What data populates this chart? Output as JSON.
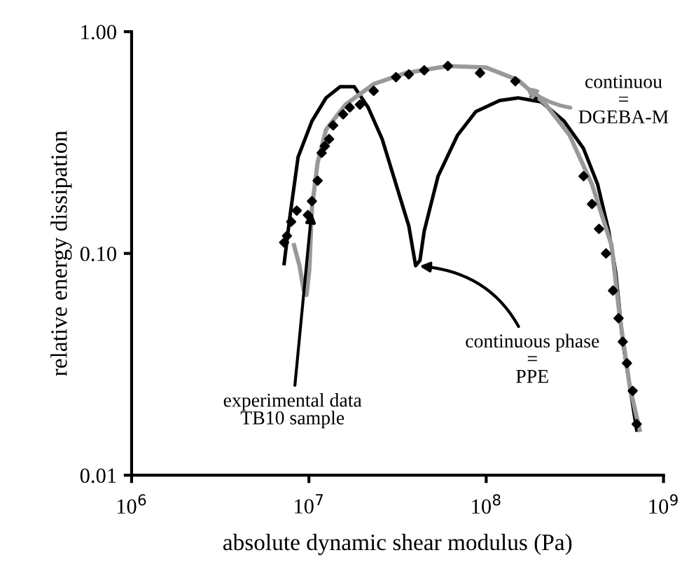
{
  "chart_data": {
    "type": "line",
    "xlabel": "absolute dynamic shear modulus (Pa)",
    "ylabel": "relative energy dissipation",
    "log": "xy",
    "grid": false,
    "legend": false,
    "xlim": [
      1000000,
      1000000000
    ],
    "xticks": [
      {
        "value": 1000000,
        "label": "10$^{6}$"
      },
      {
        "value": 10000000,
        "label": "10$^{7}$"
      },
      {
        "value": 100000000,
        "label": "10$^{8}$"
      },
      {
        "value": 1000000000,
        "label": "10$^{9}$"
      }
    ],
    "ylim": [
      0.01,
      1.0
    ],
    "yticks": [
      {
        "value": 0.01,
        "label": "0.01"
      },
      {
        "value": 0.1,
        "label": "0.10"
      },
      {
        "value": 1.0,
        "label": "1.00"
      }
    ],
    "series": [
      {
        "color": "#000000",
        "line_style": "solid",
        "marker": "none",
        "x": [
          7250000.0,
          7800000.0,
          8690000.0,
          10400000.0,
          12500000.0,
          15000000.0,
          18000000.0,
          21600000.0,
          25900000.0,
          31000000.0,
          36600000.0,
          40000000.0,
          42300000.0,
          44700000.0,
          53500000.0,
          69000000.0,
          87400000.0,
          119000000.0,
          151000000.0,
          205000000.0,
          275000000.0,
          354000000.0,
          425000000.0,
          491000000.0,
          538000000.0,
          589000000.0,
          646000000.0,
          706000000.0
        ],
        "values": [
          0.09,
          0.145,
          0.272,
          0.395,
          0.503,
          0.565,
          0.565,
          0.455,
          0.328,
          0.205,
          0.133,
          0.088,
          0.093,
          0.126,
          0.223,
          0.342,
          0.436,
          0.489,
          0.503,
          0.482,
          0.395,
          0.297,
          0.205,
          0.126,
          0.082,
          0.04,
          0.025,
          0.016
        ]
      },
      {
        "color": "#999999",
        "line_style": "solid",
        "marker": "none",
        "x": [
          8240000.0,
          8850000.0,
          9350000.0,
          9700000.0,
          10050000.0,
          10400000.0,
          11200000.0,
          12500000.0,
          16100000.0,
          23200000.0,
          35200000.0,
          60800000.0,
          99300000.0,
          151000000.0,
          217000000.0,
          295000000.0,
          395000000.0,
          509000000.0,
          568000000.0,
          646000000.0,
          733000000.0
        ],
        "values": [
          0.109,
          0.088,
          0.068,
          0.065,
          0.084,
          0.16,
          0.257,
          0.362,
          0.469,
          0.581,
          0.651,
          0.7,
          0.69,
          0.606,
          0.469,
          0.342,
          0.205,
          0.109,
          0.051,
          0.025,
          0.016
        ]
      },
      {
        "type": "scatter",
        "color": "#000000",
        "marker": "diamond",
        "x": [
          7250000.0,
          7520000.0,
          7940000.0,
          8540000.0,
          9870000.0,
          10400000.0,
          11200000.0,
          11800000.0,
          12300000.0,
          13000000.0,
          13700000.0,
          15600000.0,
          17000000.0,
          19400000.0,
          23200000.0,
          31000000.0,
          36600000.0,
          44700000.0,
          60800000.0,
          92300000.0,
          146000000.0,
          187000000.0,
          354000000.0,
          395000000.0,
          433000000.0,
          474000000.0,
          519000000.0,
          558000000.0,
          589000000.0,
          622000000.0,
          670000000.0,
          706000000.0
        ],
        "values": [
          0.112,
          0.12,
          0.139,
          0.156,
          0.149,
          0.172,
          0.213,
          0.284,
          0.305,
          0.328,
          0.378,
          0.424,
          0.455,
          0.469,
          0.541,
          0.624,
          0.642,
          0.67,
          0.7,
          0.651,
          0.598,
          0.511,
          0.223,
          0.167,
          0.129,
          0.1,
          0.068,
          0.051,
          0.04,
          0.032,
          0.024,
          0.017
        ]
      }
    ],
    "annotations": [
      {
        "text": "experimental data\nTB10 sample",
        "x": 10400000.0,
        "y": 0.16
      },
      {
        "text": "continuous phase\n=\nPPE",
        "x": 40000000.0,
        "y": 0.088
      },
      {
        "text": "continuou\n=\nDGEBA-M",
        "x": 160000000.0,
        "y": 0.58
      }
    ]
  }
}
